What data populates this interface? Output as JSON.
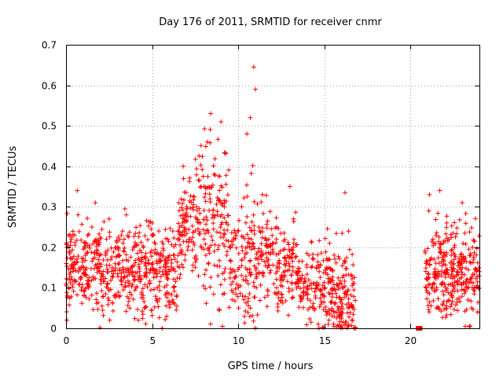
{
  "chart_data": {
    "type": "scatter",
    "title": "Day 176 of 2011, SRMTID for receiver cnmr",
    "xlabel": "GPS time / hours",
    "ylabel": "SRMTID / TECUs",
    "xlim": [
      0,
      24
    ],
    "ylim": [
      0,
      0.7
    ],
    "x_ticks": [
      0,
      5,
      10,
      15,
      20
    ],
    "y_ticks": [
      0,
      0.1,
      0.2,
      0.3,
      0.4,
      0.5,
      0.6,
      0.7
    ],
    "x_tick_labels": [
      "0",
      "5",
      "10",
      "15",
      "20"
    ],
    "y_tick_labels": [
      "0",
      "0.1",
      "0.2",
      "0.3",
      "0.4",
      "0.5",
      "0.6",
      "0.7"
    ],
    "grid": true,
    "marker": "+",
    "color": "#ff0000",
    "series": [
      {
        "name": "SRMTID",
        "approximate_distribution": "dense scatter of several thousand points, 0 to 16.8 h and 20.5 to 24 h, no data 16.8–20.5 h",
        "points": [
          [
            0.05,
            0.02
          ],
          [
            0.1,
            0.08
          ],
          [
            0.2,
            0.19
          ],
          [
            0.35,
            0.12
          ],
          [
            0.5,
            0.23
          ],
          [
            0.65,
            0.34
          ],
          [
            0.7,
            0.28
          ],
          [
            0.9,
            0.15
          ],
          [
            1.1,
            0.21
          ],
          [
            1.3,
            0.1
          ],
          [
            1.5,
            0.25
          ],
          [
            1.7,
            0.31
          ],
          [
            2.0,
            0.12
          ],
          [
            2.3,
            0.18
          ],
          [
            2.5,
            0.27
          ],
          [
            2.8,
            0.08
          ],
          [
            3.0,
            0.2
          ],
          [
            3.3,
            0.15
          ],
          [
            3.5,
            0.28
          ],
          [
            3.7,
            0.05
          ],
          [
            4.0,
            0.12
          ],
          [
            4.2,
            0.02
          ],
          [
            4.5,
            0.2
          ],
          [
            4.8,
            0.16
          ],
          [
            5.0,
            0.26
          ],
          [
            5.3,
            0.1
          ],
          [
            5.6,
            0.14
          ],
          [
            5.9,
            0.22
          ],
          [
            6.2,
            0.07
          ],
          [
            6.5,
            0.18
          ],
          [
            6.8,
            0.4
          ],
          [
            7.0,
            0.3
          ],
          [
            7.2,
            0.22
          ],
          [
            7.5,
            0.15
          ],
          [
            7.8,
            0.26
          ],
          [
            8.0,
            0.35
          ],
          [
            8.2,
            0.46
          ],
          [
            8.4,
            0.53
          ],
          [
            8.6,
            0.38
          ],
          [
            8.8,
            0.28
          ],
          [
            9.0,
            0.51
          ],
          [
            9.2,
            0.3
          ],
          [
            9.5,
            0.2
          ],
          [
            9.8,
            0.14
          ],
          [
            10.0,
            0.1
          ],
          [
            10.2,
            0.3
          ],
          [
            10.5,
            0.48
          ],
          [
            10.7,
            0.52
          ],
          [
            10.9,
            0.645
          ],
          [
            11.0,
            0.59
          ],
          [
            11.2,
            0.25
          ],
          [
            11.4,
            0.33
          ],
          [
            11.7,
            0.15
          ],
          [
            12.0,
            0.19
          ],
          [
            12.3,
            0.06
          ],
          [
            12.6,
            0.12
          ],
          [
            13.0,
            0.35
          ],
          [
            13.2,
            0.27
          ],
          [
            13.5,
            0.12
          ],
          [
            13.8,
            0.08
          ],
          [
            14.1,
            0.18
          ],
          [
            14.4,
            0.05
          ],
          [
            14.7,
            0.14
          ],
          [
            15.0,
            0.1
          ],
          [
            15.3,
            0.21
          ],
          [
            15.6,
            0.06
          ],
          [
            15.9,
            0.03
          ],
          [
            16.2,
            0.335
          ],
          [
            16.4,
            0.24
          ],
          [
            16.6,
            0.02
          ],
          [
            16.8,
            0.0
          ],
          [
            20.45,
            0.0
          ],
          [
            20.9,
            0.1
          ],
          [
            21.1,
            0.33
          ],
          [
            21.3,
            0.22
          ],
          [
            21.5,
            0.05
          ],
          [
            21.7,
            0.34
          ],
          [
            21.9,
            0.17
          ],
          [
            22.1,
            0.26
          ],
          [
            22.4,
            0.08
          ],
          [
            22.7,
            0.14
          ],
          [
            23.0,
            0.31
          ],
          [
            23.3,
            0.12
          ],
          [
            23.6,
            0.2
          ],
          [
            23.9,
            0.04
          ]
        ]
      }
    ]
  }
}
